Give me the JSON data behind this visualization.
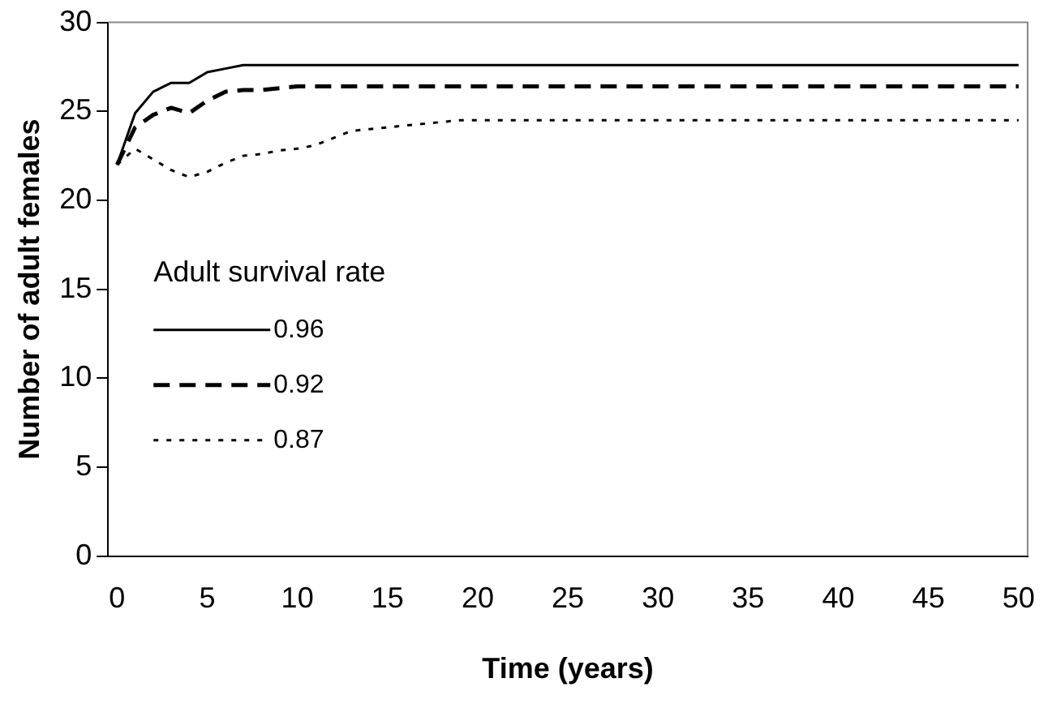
{
  "chart_data": {
    "type": "line",
    "xlabel": "Time (years)",
    "ylabel": "Number of adult females",
    "legend_title": "Adult survival rate",
    "legend": "center left",
    "grid": false,
    "marker": "none",
    "categories": [
      "0",
      null,
      null,
      null,
      null,
      "5",
      null,
      null,
      null,
      null,
      "10",
      null,
      null,
      null,
      null,
      "15",
      null,
      null,
      null,
      null,
      "20",
      null,
      null,
      null,
      null,
      "25",
      null,
      null,
      null,
      null,
      "30",
      null,
      null,
      null,
      null,
      "35",
      null,
      null,
      null,
      null,
      "40",
      null,
      null,
      null,
      null,
      "45",
      null,
      null,
      null,
      null,
      "50"
    ],
    "ylim": [
      0,
      30
    ],
    "yticks": [
      0,
      5,
      10,
      15,
      20,
      25,
      30
    ],
    "series": [
      {
        "name": "0.96",
        "color": "#000000",
        "line_style": "solid",
        "values": [
          22,
          24.9,
          26.1,
          26.6,
          26.6,
          27.2,
          27.4,
          27.6,
          27.6,
          27.6,
          27.6,
          27.6,
          27.6,
          27.6,
          27.6,
          27.6,
          27.6,
          27.6,
          27.6,
          27.6,
          27.6,
          27.6,
          27.6,
          27.6,
          27.6,
          27.6,
          27.6,
          27.6,
          27.6,
          27.6,
          27.6,
          27.6,
          27.6,
          27.6,
          27.6,
          27.6,
          27.6,
          27.6,
          27.6,
          27.6,
          27.6,
          27.6,
          27.6,
          27.6,
          27.6,
          27.6,
          27.6,
          27.6,
          27.6,
          27.6,
          27.6
        ]
      },
      {
        "name": "0.92",
        "color": "#000000",
        "line_style": "dashed",
        "values": [
          22,
          24.1,
          24.8,
          25.2,
          24.9,
          25.6,
          26.1,
          26.2,
          26.2,
          26.3,
          26.4,
          26.4,
          26.4,
          26.4,
          26.4,
          26.4,
          26.4,
          26.4,
          26.4,
          26.4,
          26.4,
          26.4,
          26.4,
          26.4,
          26.4,
          26.4,
          26.4,
          26.4,
          26.4,
          26.4,
          26.4,
          26.4,
          26.4,
          26.4,
          26.4,
          26.4,
          26.4,
          26.4,
          26.4,
          26.4,
          26.4,
          26.4,
          26.4,
          26.4,
          26.4,
          26.4,
          26.4,
          26.4,
          26.4,
          26.4,
          26.4
        ]
      },
      {
        "name": "0.87",
        "color": "#000000",
        "line_style": "dotted",
        "values": [
          22,
          22.9,
          22.3,
          21.7,
          21.3,
          21.6,
          22.1,
          22.5,
          22.6,
          22.8,
          22.9,
          23.1,
          23.5,
          23.9,
          24.0,
          24.1,
          24.2,
          24.3,
          24.4,
          24.5,
          24.5,
          24.5,
          24.5,
          24.5,
          24.5,
          24.5,
          24.5,
          24.5,
          24.5,
          24.5,
          24.5,
          24.5,
          24.5,
          24.5,
          24.5,
          24.5,
          24.5,
          24.5,
          24.5,
          24.5,
          24.5,
          24.5,
          24.5,
          24.5,
          24.5,
          24.5,
          24.5,
          24.5,
          24.5,
          24.5,
          24.5
        ]
      }
    ]
  }
}
